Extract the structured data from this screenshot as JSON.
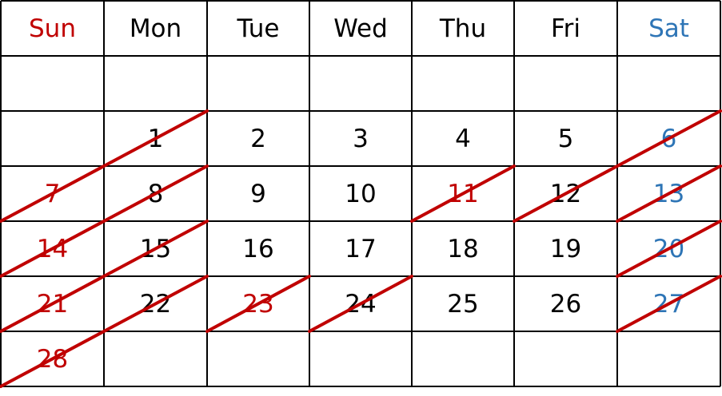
{
  "calendar": {
    "weekdays": [
      "Sun",
      "Mon",
      "Tue",
      "Wed",
      "Thu",
      "Fri",
      "Sat"
    ],
    "weeks": [
      [
        "",
        "",
        "",
        "",
        "",
        "",
        ""
      ],
      [
        "",
        "1",
        "2",
        "3",
        "4",
        "5",
        "6"
      ],
      [
        "7",
        "8",
        "9",
        "10",
        "11",
        "12",
        "13"
      ],
      [
        "14",
        "15",
        "16",
        "17",
        "18",
        "19",
        "20"
      ],
      [
        "21",
        "22",
        "23",
        "24",
        "25",
        "26",
        "27"
      ],
      [
        "28",
        "",
        "",
        "",
        "",
        "",
        ""
      ]
    ],
    "holidays": [
      "11",
      "23"
    ],
    "crossed_out": [
      "1",
      "6",
      "7",
      "8",
      "11",
      "12",
      "13",
      "14",
      "15",
      "20",
      "21",
      "22",
      "23",
      "24",
      "27",
      "28"
    ],
    "colors": {
      "sunday_holiday": "#c00000",
      "saturday": "#2e75b6",
      "text": "#000000",
      "strike": "#c00000",
      "grid": "#000000"
    }
  }
}
